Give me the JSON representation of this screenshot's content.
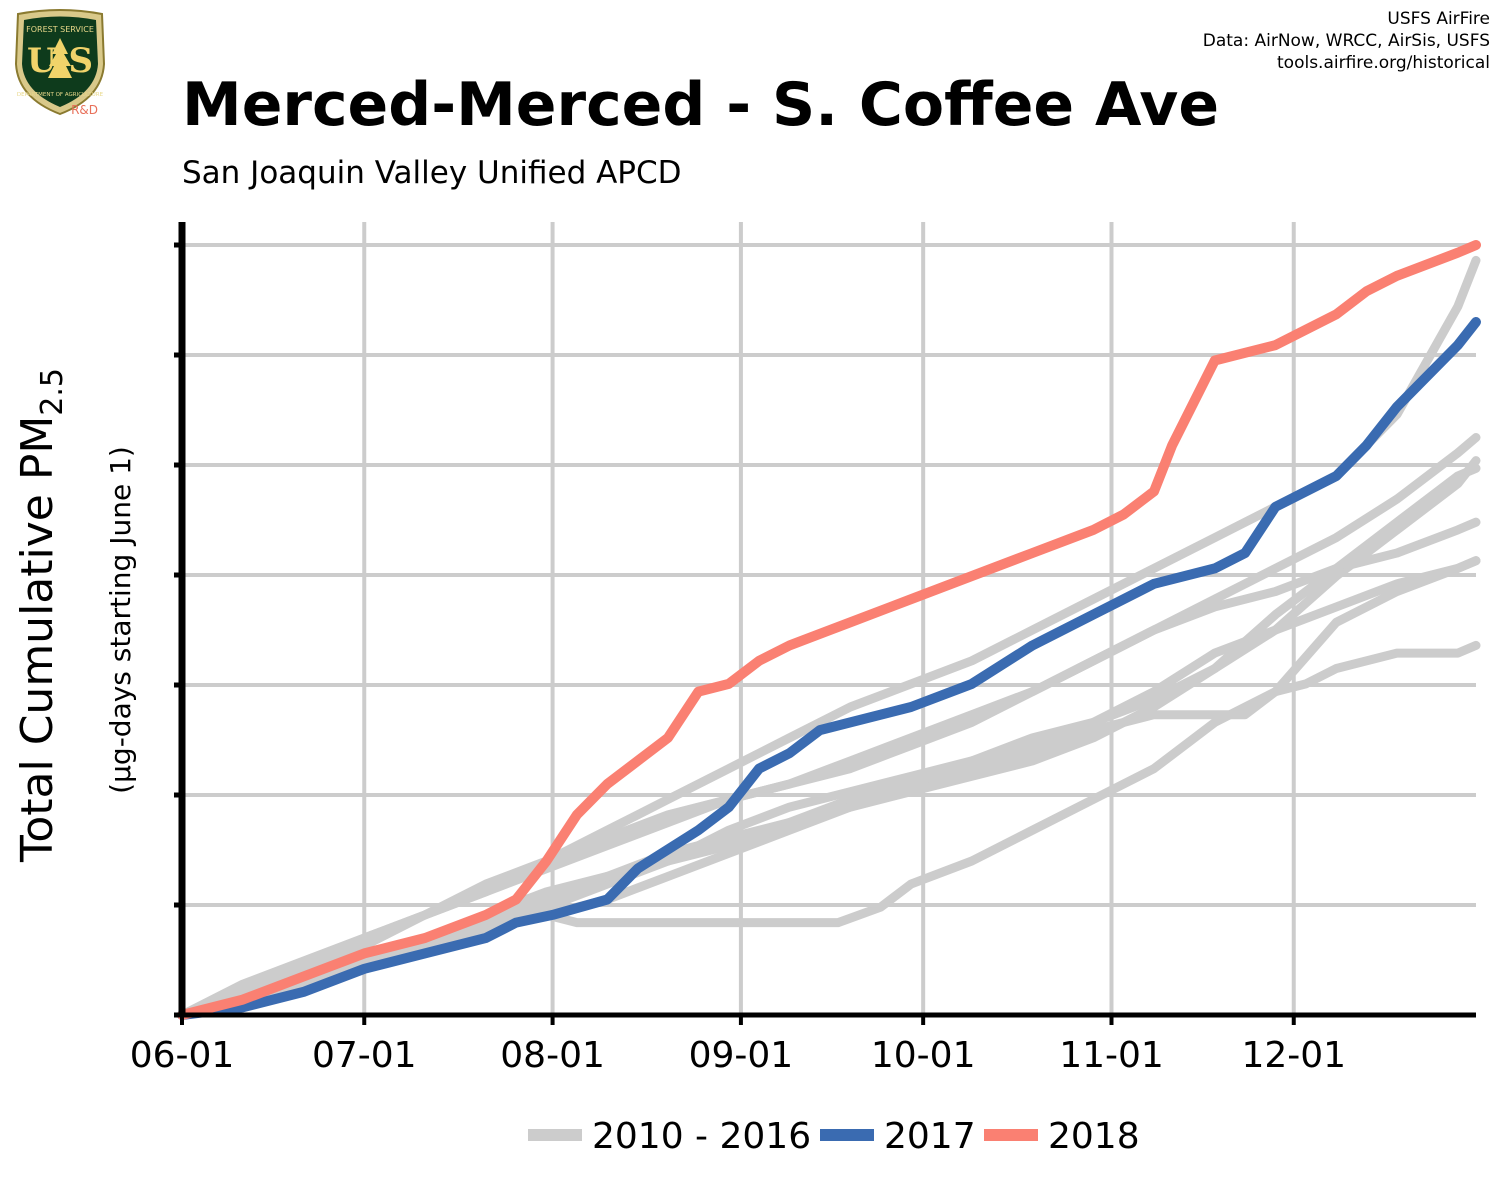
{
  "logo": {
    "text_top": "FOREST SERVICE",
    "text_mid": "U S",
    "text_bottom": "DEPARTMENT OF AGRICULTURE",
    "tag": "R&D"
  },
  "credits": [
    "USFS AirFire",
    "Data: AirNow, WRCC, AirSis, USFS",
    "tools.airfire.org/historical"
  ],
  "title": "Merced-Merced - S. Coffee Ave",
  "subtitle": "San Joaquin Valley Unified APCD",
  "ylabel": {
    "main": "Total Cumulative PM",
    "main_sub": "2.5",
    "secondary": "(µg-days starting June 1)"
  },
  "chart_data": {
    "type": "line",
    "x_ticks": [
      "06-01",
      "07-01",
      "08-01",
      "09-01",
      "10-01",
      "11-01",
      "12-01"
    ],
    "x_tick_days": [
      0,
      30,
      61,
      92,
      122,
      153,
      183
    ],
    "xlim_days": [
      0,
      213
    ],
    "y_ticks_labeled": false,
    "y_gridlines": 8,
    "ylim": [
      0,
      1
    ],
    "grid": true,
    "legend_position": "bottom",
    "colors": {
      "history": "#cccccc",
      "y2017": "#3a6bb1",
      "y2018": "#fa8072",
      "grid": "#cccccc",
      "axis": "#000000"
    },
    "legend": [
      {
        "label": "2010 - 2016",
        "color": "#cccccc"
      },
      {
        "label": "2017",
        "color": "#3a6bb1"
      },
      {
        "label": "2018",
        "color": "#fa8072"
      }
    ],
    "series": [
      {
        "values": [
          [
            0,
            0
          ],
          [
            10,
            0.04
          ],
          [
            20,
            0.07
          ],
          [
            30,
            0.1
          ],
          [
            40,
            0.13
          ],
          [
            50,
            0.16
          ],
          [
            60,
            0.2
          ],
          [
            70,
            0.24
          ],
          [
            80,
            0.28
          ],
          [
            90,
            0.32
          ],
          [
            100,
            0.36
          ],
          [
            110,
            0.4
          ],
          [
            120,
            0.43
          ],
          [
            130,
            0.46
          ],
          [
            140,
            0.5
          ],
          [
            150,
            0.54
          ],
          [
            160,
            0.58
          ],
          [
            170,
            0.62
          ],
          [
            180,
            0.66
          ],
          [
            190,
            0.7
          ],
          [
            200,
            0.78
          ],
          [
            210,
            0.92
          ],
          [
            213,
            0.98
          ]
        ]
      },
      {
        "values": [
          [
            0,
            0
          ],
          [
            10,
            0.03
          ],
          [
            20,
            0.06
          ],
          [
            30,
            0.09
          ],
          [
            40,
            0.13
          ],
          [
            50,
            0.16
          ],
          [
            60,
            0.19
          ],
          [
            70,
            0.22
          ],
          [
            80,
            0.25
          ],
          [
            90,
            0.28
          ],
          [
            100,
            0.3
          ],
          [
            110,
            0.33
          ],
          [
            120,
            0.36
          ],
          [
            130,
            0.39
          ],
          [
            140,
            0.42
          ],
          [
            150,
            0.46
          ],
          [
            160,
            0.5
          ],
          [
            170,
            0.54
          ],
          [
            180,
            0.58
          ],
          [
            190,
            0.62
          ],
          [
            200,
            0.67
          ],
          [
            210,
            0.73
          ],
          [
            213,
            0.75
          ]
        ]
      },
      {
        "values": [
          [
            0,
            0
          ],
          [
            10,
            0.02
          ],
          [
            20,
            0.05
          ],
          [
            30,
            0.08
          ],
          [
            40,
            0.1
          ],
          [
            50,
            0.12
          ],
          [
            60,
            0.14
          ],
          [
            70,
            0.17
          ],
          [
            80,
            0.2
          ],
          [
            90,
            0.24
          ],
          [
            100,
            0.27
          ],
          [
            110,
            0.29
          ],
          [
            120,
            0.31
          ],
          [
            130,
            0.33
          ],
          [
            140,
            0.35
          ],
          [
            150,
            0.38
          ],
          [
            160,
            0.41
          ],
          [
            170,
            0.45
          ],
          [
            180,
            0.5
          ],
          [
            190,
            0.57
          ],
          [
            200,
            0.63
          ],
          [
            210,
            0.69
          ],
          [
            213,
            0.72
          ]
        ]
      },
      {
        "values": [
          [
            0,
            0
          ],
          [
            10,
            0.02
          ],
          [
            20,
            0.04
          ],
          [
            30,
            0.07
          ],
          [
            40,
            0.09
          ],
          [
            50,
            0.11
          ],
          [
            60,
            0.13
          ],
          [
            65,
            0.12
          ],
          [
            70,
            0.12
          ],
          [
            80,
            0.12
          ],
          [
            90,
            0.12
          ],
          [
            100,
            0.12
          ],
          [
            108,
            0.12
          ],
          [
            115,
            0.14
          ],
          [
            120,
            0.17
          ],
          [
            130,
            0.2
          ],
          [
            140,
            0.24
          ],
          [
            150,
            0.28
          ],
          [
            160,
            0.32
          ],
          [
            170,
            0.38
          ],
          [
            180,
            0.42
          ],
          [
            185,
            0.43
          ],
          [
            190,
            0.45
          ],
          [
            200,
            0.47
          ],
          [
            210,
            0.47
          ],
          [
            213,
            0.48
          ]
        ]
      },
      {
        "values": [
          [
            0,
            0
          ],
          [
            10,
            0.03
          ],
          [
            20,
            0.06
          ],
          [
            30,
            0.08
          ],
          [
            40,
            0.1
          ],
          [
            50,
            0.12
          ],
          [
            60,
            0.15
          ],
          [
            70,
            0.18
          ],
          [
            80,
            0.2
          ],
          [
            90,
            0.22
          ],
          [
            100,
            0.25
          ],
          [
            110,
            0.28
          ],
          [
            120,
            0.3
          ],
          [
            130,
            0.32
          ],
          [
            140,
            0.34
          ],
          [
            150,
            0.37
          ],
          [
            160,
            0.39
          ],
          [
            170,
            0.39
          ],
          [
            175,
            0.39
          ],
          [
            180,
            0.42
          ],
          [
            190,
            0.51
          ],
          [
            200,
            0.55
          ],
          [
            210,
            0.58
          ],
          [
            213,
            0.59
          ]
        ]
      },
      {
        "values": [
          [
            0,
            0
          ],
          [
            10,
            0.03
          ],
          [
            20,
            0.06
          ],
          [
            30,
            0.1
          ],
          [
            40,
            0.13
          ],
          [
            50,
            0.17
          ],
          [
            60,
            0.2
          ],
          [
            70,
            0.23
          ],
          [
            80,
            0.26
          ],
          [
            90,
            0.28
          ],
          [
            100,
            0.3
          ],
          [
            110,
            0.32
          ],
          [
            120,
            0.35
          ],
          [
            130,
            0.38
          ],
          [
            140,
            0.42
          ],
          [
            150,
            0.46
          ],
          [
            160,
            0.5
          ],
          [
            170,
            0.53
          ],
          [
            180,
            0.55
          ],
          [
            190,
            0.58
          ],
          [
            200,
            0.6
          ],
          [
            210,
            0.63
          ],
          [
            213,
            0.64
          ]
        ]
      },
      {
        "values": [
          [
            0,
            0
          ],
          [
            10,
            0.02
          ],
          [
            20,
            0.05
          ],
          [
            30,
            0.08
          ],
          [
            40,
            0.1
          ],
          [
            50,
            0.13
          ],
          [
            60,
            0.16
          ],
          [
            70,
            0.18
          ],
          [
            80,
            0.21
          ],
          [
            90,
            0.23
          ],
          [
            100,
            0.25
          ],
          [
            110,
            0.27
          ],
          [
            120,
            0.29
          ],
          [
            130,
            0.31
          ],
          [
            140,
            0.33
          ],
          [
            150,
            0.36
          ],
          [
            160,
            0.4
          ],
          [
            170,
            0.45
          ],
          [
            180,
            0.52
          ],
          [
            190,
            0.58
          ],
          [
            200,
            0.64
          ],
          [
            210,
            0.7
          ],
          [
            213,
            0.71
          ]
        ]
      },
      {
        "values": [
          [
            0,
            0
          ],
          [
            10,
            0.03
          ],
          [
            20,
            0.05
          ],
          [
            30,
            0.07
          ],
          [
            40,
            0.09
          ],
          [
            50,
            0.11
          ],
          [
            60,
            0.13
          ],
          [
            70,
            0.15
          ],
          [
            80,
            0.18
          ],
          [
            90,
            0.21
          ],
          [
            100,
            0.24
          ],
          [
            110,
            0.27
          ],
          [
            120,
            0.3
          ],
          [
            130,
            0.33
          ],
          [
            140,
            0.36
          ],
          [
            150,
            0.38
          ],
          [
            160,
            0.42
          ],
          [
            170,
            0.47
          ],
          [
            180,
            0.5
          ],
          [
            190,
            0.53
          ],
          [
            200,
            0.56
          ],
          [
            210,
            0.58
          ],
          [
            213,
            0.59
          ]
        ]
      },
      {
        "name": "2017",
        "values": [
          [
            0,
            0
          ],
          [
            10,
            0.01
          ],
          [
            20,
            0.03
          ],
          [
            30,
            0.06
          ],
          [
            40,
            0.08
          ],
          [
            50,
            0.1
          ],
          [
            55,
            0.12
          ],
          [
            61,
            0.13
          ],
          [
            70,
            0.15
          ],
          [
            75,
            0.19
          ],
          [
            85,
            0.24
          ],
          [
            90,
            0.27
          ],
          [
            95,
            0.32
          ],
          [
            100,
            0.34
          ],
          [
            105,
            0.37
          ],
          [
            110,
            0.38
          ],
          [
            120,
            0.4
          ],
          [
            130,
            0.43
          ],
          [
            140,
            0.48
          ],
          [
            150,
            0.52
          ],
          [
            160,
            0.56
          ],
          [
            170,
            0.58
          ],
          [
            175,
            0.6
          ],
          [
            180,
            0.66
          ],
          [
            190,
            0.7
          ],
          [
            195,
            0.74
          ],
          [
            200,
            0.79
          ],
          [
            210,
            0.87
          ],
          [
            213,
            0.9
          ]
        ]
      },
      {
        "name": "2018",
        "values": [
          [
            0,
            0
          ],
          [
            10,
            0.02
          ],
          [
            20,
            0.05
          ],
          [
            30,
            0.08
          ],
          [
            40,
            0.1
          ],
          [
            50,
            0.13
          ],
          [
            55,
            0.15
          ],
          [
            60,
            0.2
          ],
          [
            65,
            0.26
          ],
          [
            70,
            0.3
          ],
          [
            80,
            0.36
          ],
          [
            85,
            0.42
          ],
          [
            90,
            0.43
          ],
          [
            95,
            0.46
          ],
          [
            100,
            0.48
          ],
          [
            110,
            0.51
          ],
          [
            120,
            0.54
          ],
          [
            130,
            0.57
          ],
          [
            140,
            0.6
          ],
          [
            150,
            0.63
          ],
          [
            155,
            0.65
          ],
          [
            160,
            0.68
          ],
          [
            163,
            0.74
          ],
          [
            170,
            0.85
          ],
          [
            180,
            0.87
          ],
          [
            185,
            0.89
          ],
          [
            190,
            0.91
          ],
          [
            195,
            0.94
          ],
          [
            200,
            0.96
          ],
          [
            210,
            0.99
          ],
          [
            213,
            1.0
          ]
        ]
      }
    ]
  }
}
